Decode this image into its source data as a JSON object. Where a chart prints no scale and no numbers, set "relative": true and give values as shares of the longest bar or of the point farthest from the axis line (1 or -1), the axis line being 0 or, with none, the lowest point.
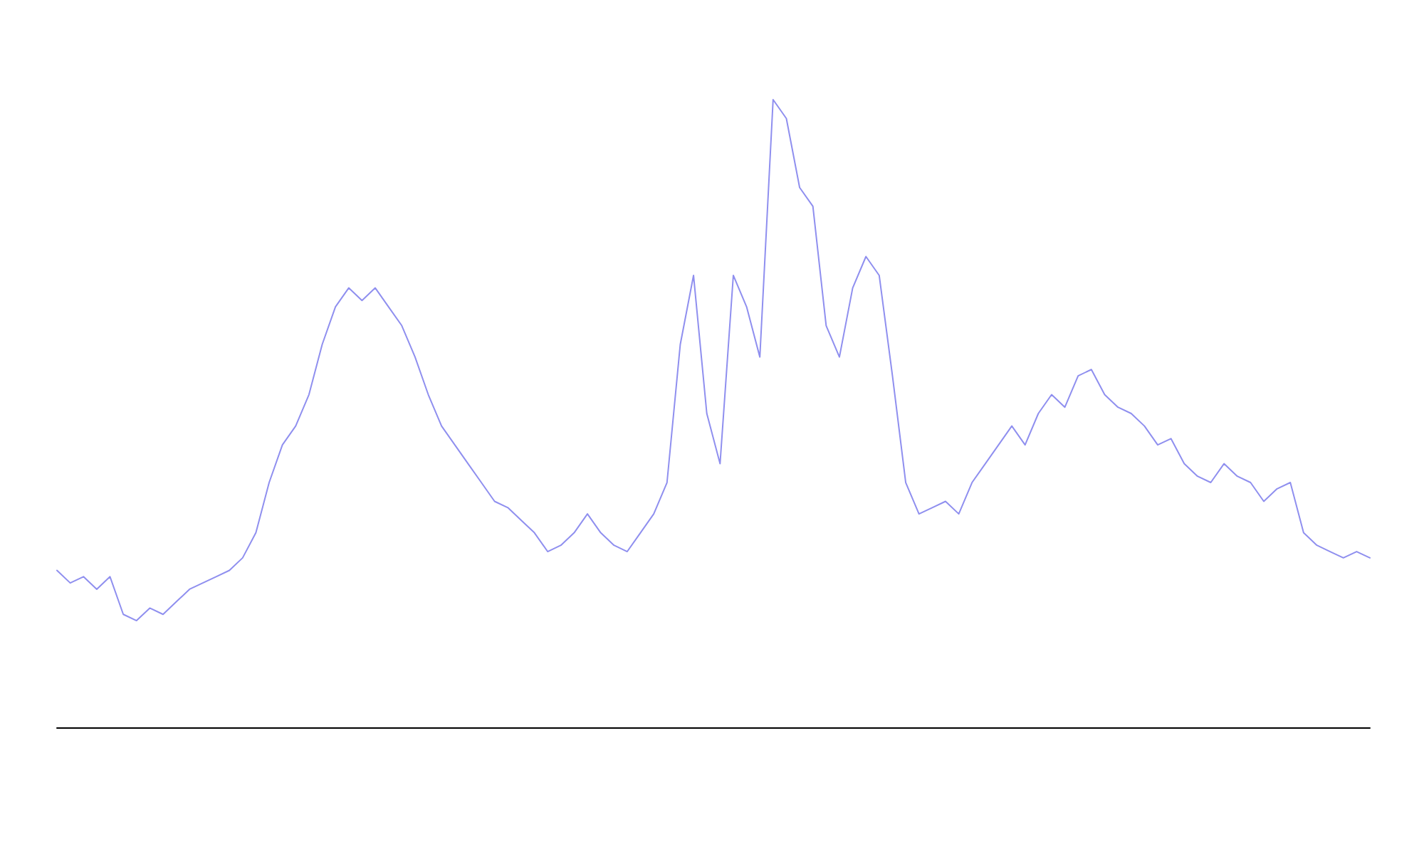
{
  "chart_data": {
    "type": "line",
    "relative": true,
    "marker": "none",
    "line_style": "solid",
    "grid": false,
    "categories": [
      null,
      null,
      null,
      null,
      null,
      null,
      null,
      null,
      null,
      null,
      null,
      null,
      null,
      null,
      null,
      null,
      null,
      null,
      null,
      null,
      null,
      null,
      null,
      null,
      null,
      null,
      null,
      null,
      null,
      null,
      null,
      null,
      null,
      null,
      null,
      null,
      null,
      null,
      null,
      null,
      null,
      null,
      null,
      null,
      null,
      null,
      null,
      null,
      null,
      null,
      null,
      null,
      null,
      null,
      null,
      null,
      null,
      null,
      null,
      null,
      null,
      null,
      null,
      null,
      null,
      null,
      null,
      null,
      null,
      null,
      null,
      null,
      null,
      null,
      null,
      null,
      null,
      null,
      null,
      null,
      null,
      null,
      null,
      null,
      null,
      null,
      null,
      null,
      null,
      null,
      null,
      null,
      null,
      null,
      null,
      null,
      null,
      null,
      null,
      null
    ],
    "series": [
      {
        "color": "#8f8fef",
        "values": [
          0.25,
          0.23,
          0.24,
          0.22,
          0.24,
          0.18,
          0.17,
          0.19,
          0.18,
          0.2,
          0.22,
          0.23,
          0.24,
          0.25,
          0.27,
          0.31,
          0.39,
          0.45,
          0.48,
          0.53,
          0.61,
          0.67,
          0.7,
          0.68,
          0.7,
          0.67,
          0.64,
          0.59,
          0.53,
          0.48,
          0.45,
          0.42,
          0.39,
          0.36,
          0.35,
          0.33,
          0.31,
          0.28,
          0.29,
          0.31,
          0.34,
          0.31,
          0.29,
          0.28,
          0.31,
          0.34,
          0.39,
          0.61,
          0.72,
          0.5,
          0.42,
          0.72,
          0.67,
          0.59,
          1,
          0.97,
          0.86,
          0.83,
          0.64,
          0.59,
          0.7,
          0.75,
          0.72,
          0.56,
          0.39,
          0.34,
          0.35,
          0.36,
          0.34,
          0.39,
          0.42,
          0.45,
          0.48,
          0.45,
          0.5,
          0.53,
          0.51,
          0.56,
          0.57,
          0.53,
          0.51,
          0.5,
          0.48,
          0.45,
          0.46,
          0.42,
          0.4,
          0.39,
          0.42,
          0.4,
          0.39,
          0.36,
          0.38,
          0.39,
          0.31,
          0.29,
          0.28,
          0.27,
          0.28,
          0.27
        ]
      }
    ]
  }
}
